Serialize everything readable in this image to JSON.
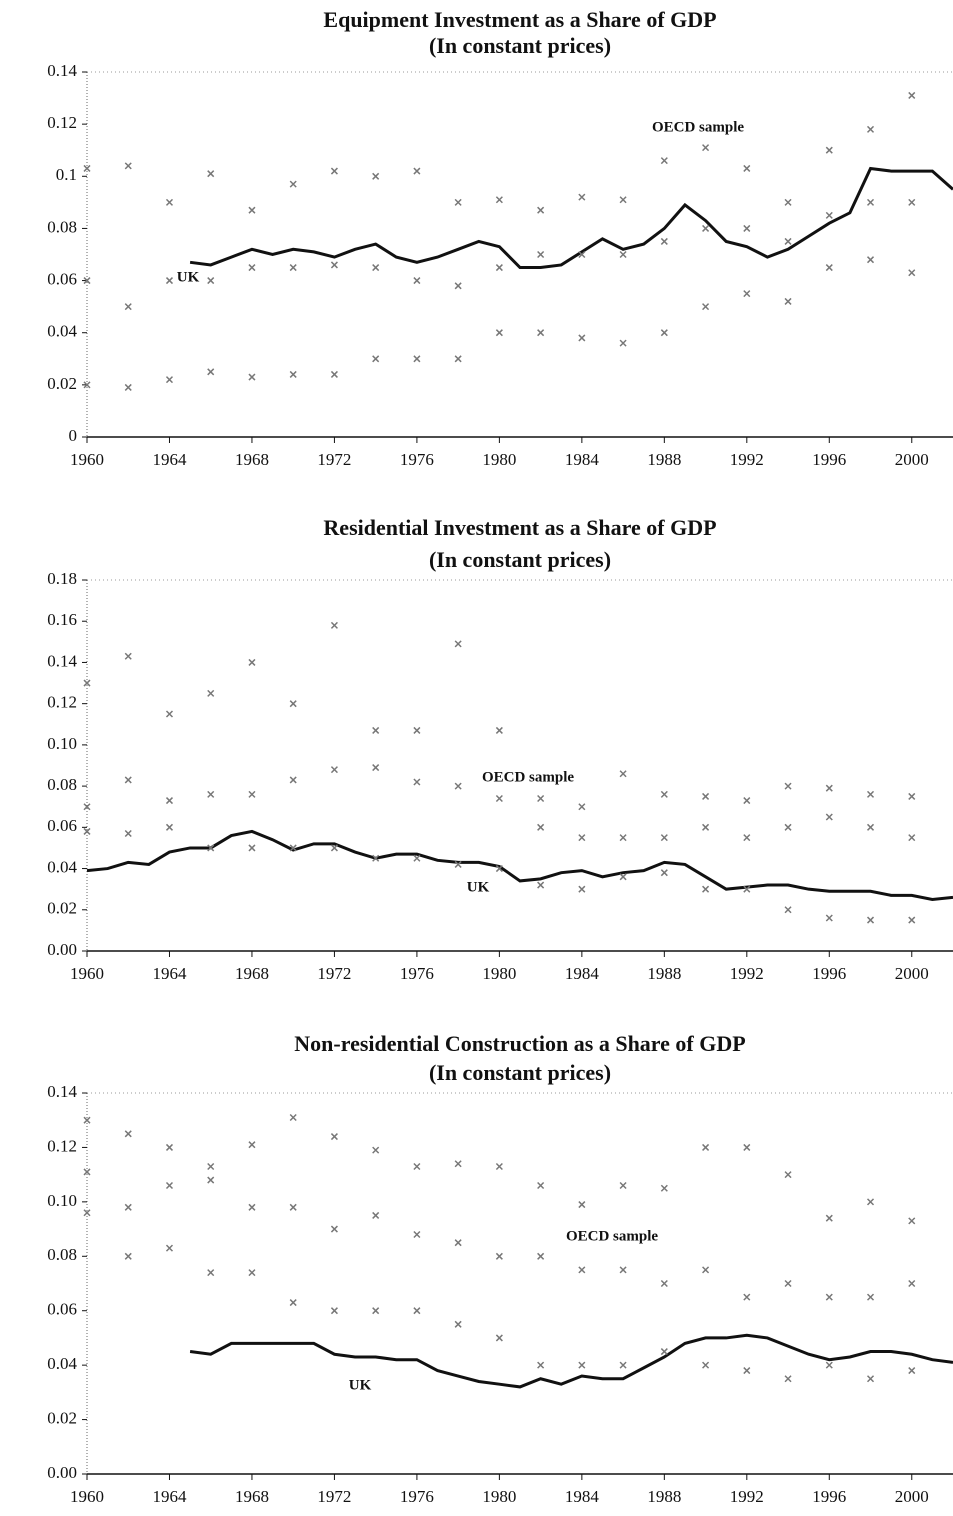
{
  "chart_data": [
    {
      "type": "line",
      "title": "Equipment Investment as a Share of GDP",
      "subtitle": "(In constant prices)",
      "xlim": [
        1960,
        2002
      ],
      "xticks": [
        1960,
        1964,
        1968,
        1972,
        1976,
        1980,
        1984,
        1988,
        1992,
        1996,
        2000
      ],
      "ylim": [
        0,
        0.14
      ],
      "yticks": [
        0,
        0.02,
        0.04,
        0.06,
        0.08,
        0.1,
        0.12,
        0.14
      ],
      "series": [
        {
          "name": "UK",
          "type": "line",
          "color": "#111111",
          "x": [
            1965,
            1966,
            1967,
            1968,
            1969,
            1970,
            1971,
            1972,
            1973,
            1974,
            1975,
            1976,
            1977,
            1978,
            1979,
            1980,
            1981,
            1982,
            1983,
            1984,
            1985,
            1986,
            1987,
            1988,
            1989,
            1990,
            1991,
            1992,
            1993,
            1994,
            1995,
            1996,
            1997,
            1998,
            1999,
            2000,
            2001,
            2002
          ],
          "values": [
            0.067,
            0.066,
            0.069,
            0.072,
            0.07,
            0.072,
            0.071,
            0.069,
            0.072,
            0.074,
            0.069,
            0.067,
            0.069,
            0.072,
            0.075,
            0.073,
            0.065,
            0.065,
            0.066,
            0.071,
            0.076,
            0.072,
            0.074,
            0.08,
            0.089,
            0.083,
            0.075,
            0.073,
            0.069,
            0.072,
            0.077,
            0.082,
            0.086,
            0.103,
            0.102,
            0.102,
            0.102,
            0.095
          ]
        },
        {
          "name": "OECD sample",
          "type": "scatter",
          "color": "#777777",
          "x": [
            1960,
            1962,
            1964,
            1966,
            1968,
            1970,
            1972,
            1974,
            1976,
            1978,
            1980,
            1982,
            1984,
            1986,
            1988,
            1990,
            1992,
            1994,
            1996,
            1998,
            2000,
            1960,
            1962,
            1964,
            1966,
            1968,
            1970,
            1972,
            1974,
            1976,
            1978,
            1980,
            1982,
            1984,
            1986,
            1988,
            1990,
            1992,
            1994,
            1996,
            1998,
            2000,
            1960,
            1962,
            1964,
            1966,
            1968,
            1970,
            1972,
            1974,
            1976,
            1978,
            1980,
            1982,
            1984,
            1986,
            1988,
            1990,
            1992,
            1994,
            1996,
            1998,
            2000
          ],
          "values": [
            0.103,
            0.104,
            0.09,
            0.101,
            0.087,
            0.097,
            0.102,
            0.1,
            0.102,
            0.09,
            0.091,
            0.087,
            0.092,
            0.091,
            0.106,
            0.111,
            0.103,
            0.09,
            0.11,
            0.118,
            0.131,
            0.06,
            0.05,
            0.06,
            0.06,
            0.065,
            0.065,
            0.066,
            0.065,
            0.06,
            0.058,
            0.065,
            0.07,
            0.07,
            0.07,
            0.075,
            0.08,
            0.08,
            0.075,
            0.085,
            0.09,
            0.09,
            0.02,
            0.019,
            0.022,
            0.025,
            0.023,
            0.024,
            0.024,
            0.03,
            0.03,
            0.03,
            0.04,
            0.04,
            0.038,
            0.036,
            0.04,
            0.05,
            0.055,
            0.052,
            0.065,
            0.068,
            0.063
          ]
        }
      ]
    },
    {
      "type": "line",
      "title": "Residential Investment as a Share of GDP",
      "subtitle": "(In constant prices)",
      "xlim": [
        1960,
        2002
      ],
      "xticks": [
        1960,
        1964,
        1968,
        1972,
        1976,
        1980,
        1984,
        1988,
        1992,
        1996,
        2000
      ],
      "ylim": [
        0,
        0.18
      ],
      "yticks": [
        {
          "value": 0,
          "label": "0.00"
        },
        {
          "value": 0.02,
          "label": "0.02"
        },
        {
          "value": 0.04,
          "label": "0.04"
        },
        {
          "value": 0.06,
          "label": "0.06"
        },
        {
          "value": 0.08,
          "label": "0.08"
        },
        {
          "value": 0.1,
          "label": "0.10"
        },
        {
          "value": 0.12,
          "label": "0.12"
        },
        {
          "value": 0.14,
          "label": "0.14"
        },
        {
          "value": 0.16,
          "label": "0.16"
        },
        {
          "value": 0.18,
          "label": "0.18"
        }
      ],
      "series": [
        {
          "name": "UK",
          "type": "line",
          "color": "#111111",
          "x": [
            1960,
            1961,
            1962,
            1963,
            1964,
            1965,
            1966,
            1967,
            1968,
            1969,
            1970,
            1971,
            1972,
            1973,
            1974,
            1975,
            1976,
            1977,
            1978,
            1979,
            1980,
            1981,
            1982,
            1983,
            1984,
            1985,
            1986,
            1987,
            1988,
            1989,
            1990,
            1991,
            1992,
            1993,
            1994,
            1995,
            1996,
            1997,
            1998,
            1999,
            2000,
            2001,
            2002
          ],
          "values": [
            0.039,
            0.04,
            0.043,
            0.042,
            0.048,
            0.05,
            0.05,
            0.056,
            0.058,
            0.054,
            0.049,
            0.052,
            0.052,
            0.048,
            0.045,
            0.047,
            0.047,
            0.044,
            0.043,
            0.043,
            0.041,
            0.034,
            0.035,
            0.038,
            0.039,
            0.036,
            0.038,
            0.039,
            0.043,
            0.042,
            0.036,
            0.03,
            0.031,
            0.032,
            0.032,
            0.03,
            0.029,
            0.029,
            0.029,
            0.027,
            0.027,
            0.025,
            0.026
          ]
        },
        {
          "name": "OECD sample",
          "type": "scatter",
          "color": "#777777",
          "x": [
            1960,
            1962,
            1964,
            1966,
            1968,
            1970,
            1972,
            1974,
            1976,
            1978,
            1980,
            1982,
            1984,
            1986,
            1988,
            1990,
            1992,
            1994,
            1996,
            1998,
            2000,
            1960,
            1962,
            1964,
            1966,
            1968,
            1970,
            1972,
            1974,
            1976,
            1978,
            1980,
            1982,
            1984,
            1986,
            1988,
            1990,
            1992,
            1994,
            1996,
            1998,
            2000,
            1960,
            1962,
            1964,
            1966,
            1968,
            1970,
            1972,
            1974,
            1976,
            1978,
            1980,
            1982,
            1984,
            1986,
            1988,
            1990,
            1992,
            1994,
            1996,
            1998,
            2000
          ],
          "values": [
            0.13,
            0.143,
            0.115,
            0.125,
            0.14,
            0.12,
            0.158,
            0.107,
            0.107,
            0.149,
            0.107,
            0.074,
            0.07,
            0.086,
            0.076,
            0.075,
            0.073,
            0.08,
            0.079,
            0.076,
            0.075,
            0.07,
            0.083,
            0.073,
            0.076,
            0.076,
            0.083,
            0.088,
            0.089,
            0.082,
            0.08,
            0.074,
            0.06,
            0.055,
            0.055,
            0.055,
            0.06,
            0.055,
            0.06,
            0.065,
            0.06,
            0.055,
            0.058,
            0.057,
            0.06,
            0.05,
            0.05,
            0.05,
            0.05,
            0.045,
            0.045,
            0.042,
            0.04,
            0.032,
            0.03,
            0.036,
            0.038,
            0.03,
            0.03,
            0.02,
            0.016,
            0.015,
            0.015
          ]
        }
      ]
    },
    {
      "type": "line",
      "title": "Non-residential Construction as a Share of GDP",
      "subtitle": "(In constant prices)",
      "xlim": [
        1960,
        2002
      ],
      "xticks": [
        1960,
        1964,
        1968,
        1972,
        1976,
        1980,
        1984,
        1988,
        1992,
        1996,
        2000
      ],
      "ylim": [
        0,
        0.14
      ],
      "yticks": [
        {
          "value": 0,
          "label": "0.00"
        },
        {
          "value": 0.02,
          "label": "0.02"
        },
        {
          "value": 0.04,
          "label": "0.04"
        },
        {
          "value": 0.06,
          "label": "0.06"
        },
        {
          "value": 0.08,
          "label": "0.08"
        },
        {
          "value": 0.1,
          "label": "0.10"
        },
        {
          "value": 0.12,
          "label": "0.12"
        },
        {
          "value": 0.14,
          "label": "0.14"
        }
      ],
      "series": [
        {
          "name": "UK",
          "type": "line",
          "color": "#111111",
          "x": [
            1965,
            1966,
            1967,
            1968,
            1969,
            1970,
            1971,
            1972,
            1973,
            1974,
            1975,
            1976,
            1977,
            1978,
            1979,
            1980,
            1981,
            1982,
            1983,
            1984,
            1985,
            1986,
            1987,
            1988,
            1989,
            1990,
            1991,
            1992,
            1993,
            1994,
            1995,
            1996,
            1997,
            1998,
            1999,
            2000,
            2001,
            2002
          ],
          "values": [
            0.045,
            0.044,
            0.048,
            0.048,
            0.048,
            0.048,
            0.048,
            0.044,
            0.043,
            0.043,
            0.042,
            0.042,
            0.038,
            0.036,
            0.034,
            0.033,
            0.032,
            0.035,
            0.033,
            0.036,
            0.035,
            0.035,
            0.039,
            0.043,
            0.048,
            0.05,
            0.05,
            0.051,
            0.05,
            0.047,
            0.044,
            0.042,
            0.043,
            0.045,
            0.045,
            0.044,
            0.042,
            0.041
          ]
        },
        {
          "name": "OECD sample",
          "type": "scatter",
          "color": "#777777",
          "x": [
            1960,
            1962,
            1964,
            1966,
            1968,
            1970,
            1972,
            1974,
            1976,
            1978,
            1980,
            1982,
            1984,
            1986,
            1988,
            1990,
            1992,
            1994,
            1996,
            1998,
            2000,
            1960,
            1962,
            1964,
            1966,
            1968,
            1970,
            1972,
            1974,
            1976,
            1978,
            1980,
            1982,
            1984,
            1986,
            1988,
            1990,
            1992,
            1994,
            1996,
            1998,
            2000,
            1960,
            1962,
            1964,
            1966,
            1968,
            1970,
            1972,
            1974,
            1976,
            1978,
            1980,
            1982,
            1984,
            1986,
            1988,
            1990,
            1992,
            1994,
            1996,
            1998,
            2000
          ],
          "values": [
            0.13,
            0.125,
            0.12,
            0.113,
            0.121,
            0.131,
            0.124,
            0.119,
            0.113,
            0.114,
            0.113,
            0.106,
            0.099,
            0.106,
            0.105,
            0.12,
            0.12,
            0.11,
            0.094,
            0.1,
            0.093,
            0.111,
            0.098,
            0.106,
            0.108,
            0.098,
            0.098,
            0.09,
            0.095,
            0.088,
            0.085,
            0.08,
            0.08,
            0.075,
            0.075,
            0.07,
            0.075,
            0.065,
            0.07,
            0.065,
            0.065,
            0.07,
            0.096,
            0.08,
            0.083,
            0.074,
            0.074,
            0.063,
            0.06,
            0.06,
            0.06,
            0.055,
            0.05,
            0.04,
            0.04,
            0.04,
            0.045,
            0.04,
            0.038,
            0.035,
            0.04,
            0.035,
            0.038
          ]
        }
      ]
    }
  ]
}
